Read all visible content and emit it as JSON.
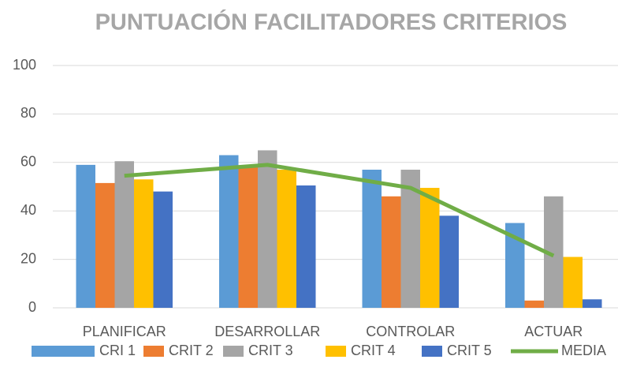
{
  "chart_data": {
    "type": "bar",
    "title": "PUNTUACIÓN FACILITADORES CRITERIOS",
    "categories": [
      "PLANIFICAR",
      "DESARROLLAR",
      "CONTROLAR",
      "ACTUAR"
    ],
    "series": [
      {
        "name": "CRI 1",
        "type": "bar",
        "color": "#5b9bd5",
        "values": [
          59,
          63,
          57,
          35
        ]
      },
      {
        "name": "CRIT 2",
        "type": "bar",
        "color": "#ed7d31",
        "values": [
          51.5,
          58,
          46,
          3
        ]
      },
      {
        "name": "CRIT 3",
        "type": "bar",
        "color": "#a5a5a5",
        "values": [
          60.5,
          65,
          57,
          46
        ]
      },
      {
        "name": "CRIT 4",
        "type": "bar",
        "color": "#ffc000",
        "values": [
          53,
          57,
          49.5,
          21
        ]
      },
      {
        "name": "CRIT 5",
        "type": "bar",
        "color": "#4472c4",
        "values": [
          48,
          50.5,
          38,
          3.5
        ]
      },
      {
        "name": "MEDIA",
        "type": "line",
        "color": "#70ad47",
        "values": [
          54.5,
          59,
          49.5,
          21.5
        ]
      }
    ],
    "ylim": [
      0,
      100
    ],
    "yticks": [
      0,
      20,
      40,
      60,
      80,
      100
    ],
    "grid": true,
    "legend": "bottom"
  }
}
